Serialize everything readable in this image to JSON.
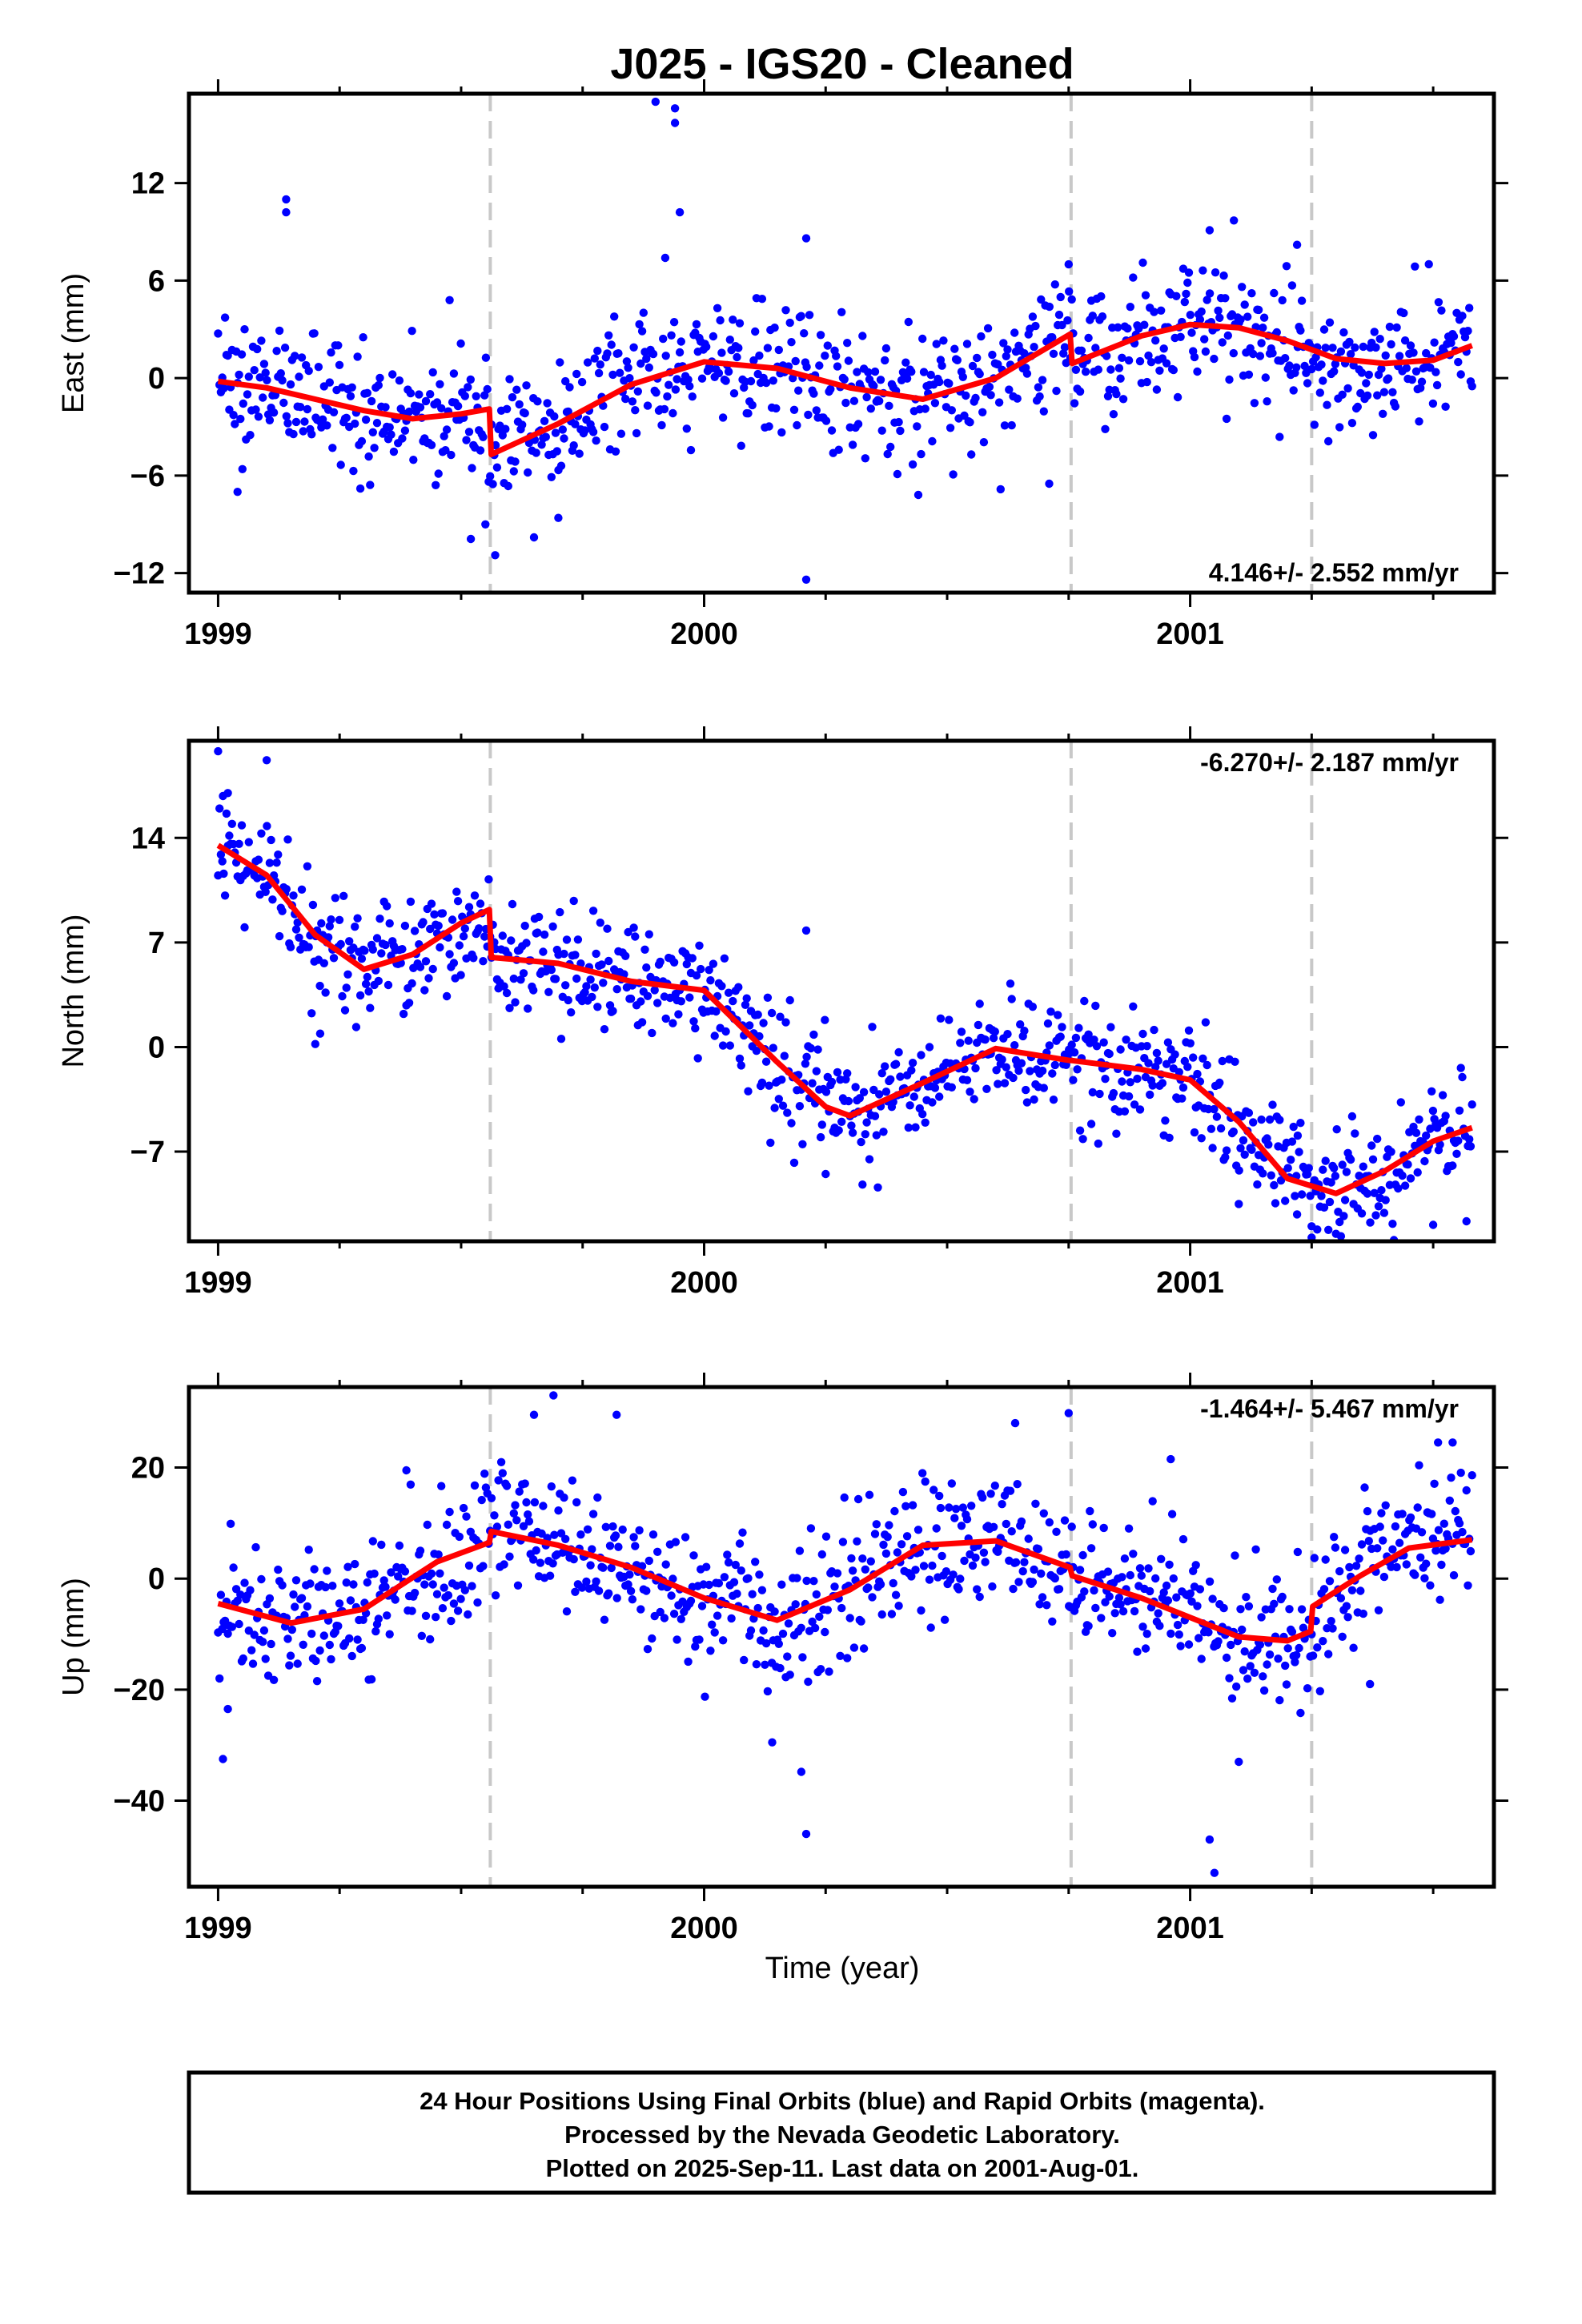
{
  "title": "J025  - IGS20 - Cleaned",
  "xlabel": "Time (year)",
  "footer": {
    "line1": "24 Hour Positions Using Final Orbits (blue) and Rapid Orbits (magenta).",
    "line2": "Processed by the Nevada Geodetic Laboratory.",
    "line3": "Plotted on 2025-Sep-11. Last data on 2001-Aug-01."
  },
  "colors": {
    "points": "#0000ff",
    "model": "#ff0000",
    "event_lines": "#c8c8c8",
    "frame": "#000000"
  },
  "chart_data": [
    {
      "type": "scatter",
      "panel": "east",
      "ylabel": "East (mm)",
      "rate_label": "4.146+/- 2.552 mm/yr",
      "xlim": [
        1998.94,
        2001.625
      ],
      "ylim": [
        -13.2,
        17.5
      ],
      "x_ticks": [
        1999,
        2000,
        2001
      ],
      "x_tick_labels": [
        "1999",
        "2000",
        "2001"
      ],
      "y_ticks": [
        -12,
        -6,
        0,
        6,
        12
      ],
      "y_tick_labels": [
        "−12",
        "−6",
        "0",
        "6",
        "12"
      ],
      "event_lines": [
        1999.56,
        2000.755,
        2001.25
      ],
      "series": [
        {
          "kind": "model",
          "x": [
            1999.0,
            1999.1,
            1999.2,
            1999.3,
            1999.4,
            1999.5,
            1999.558,
            1999.562,
            1999.7,
            1999.85,
            2000.0,
            2000.15,
            2000.3,
            2000.45,
            2000.6,
            2000.753,
            2000.757,
            2000.9,
            2001.0,
            2001.1,
            2001.2,
            2001.3,
            2001.4,
            2001.5,
            2001.58
          ],
          "y": [
            -0.2,
            -0.6,
            -1.3,
            -2.0,
            -2.5,
            -2.2,
            -1.9,
            -4.7,
            -2.8,
            -0.4,
            1.0,
            0.6,
            -0.6,
            -1.3,
            0.0,
            2.7,
            0.9,
            2.6,
            3.3,
            3.1,
            2.3,
            1.2,
            0.9,
            1.1,
            2.0
          ]
        },
        {
          "kind": "outliers",
          "x": [
            1999.14,
            1999.14,
            1999.9,
            1999.94,
            1999.94,
            1999.95,
            2000.21,
            2000.21,
            1999.52,
            1999.55,
            1999.57,
            1999.65,
            1999.7,
            2000.71,
            2000.75,
            2001.04,
            2001.09,
            2001.22,
            1999.04,
            1999.05,
            1999.92
          ],
          "y": [
            10.2,
            11.0,
            17.0,
            15.7,
            16.6,
            10.2,
            8.6,
            -12.4,
            -9.9,
            -9.0,
            -10.9,
            -9.8,
            -8.6,
            -6.5,
            7.0,
            9.1,
            9.7,
            8.2,
            -7.0,
            -5.6,
            7.4
          ]
        }
      ]
    },
    {
      "type": "scatter",
      "panel": "north",
      "ylabel": "North (mm)",
      "rate_label": "-6.270+/- 2.187 mm/yr",
      "xlim": [
        1998.94,
        2001.625
      ],
      "ylim": [
        -13.0,
        20.5
      ],
      "x_ticks": [
        1999,
        2000,
        2001
      ],
      "x_tick_labels": [
        "1999",
        "2000",
        "2001"
      ],
      "y_ticks": [
        -7,
        0,
        7,
        14
      ],
      "y_tick_labels": [
        "−7",
        "0",
        "7",
        "14"
      ],
      "event_lines": [
        1999.56,
        2000.755,
        2001.25
      ],
      "series": [
        {
          "kind": "model",
          "x": [
            1999.0,
            1999.1,
            1999.2,
            1999.3,
            1999.4,
            1999.5,
            1999.558,
            1999.562,
            1999.7,
            1999.85,
            2000.0,
            2000.15,
            2000.25,
            2000.3,
            2000.45,
            2000.6,
            2000.753,
            2000.757,
            2000.9,
            2001.0,
            2001.1,
            2001.2,
            2001.3,
            2001.4,
            2001.5,
            2001.58
          ],
          "y": [
            13.5,
            11.5,
            7.5,
            5.2,
            6.2,
            8.3,
            9.2,
            6.0,
            5.6,
            4.4,
            3.8,
            -1.0,
            -4.0,
            -4.6,
            -2.4,
            -0.1,
            -0.9,
            -0.9,
            -1.5,
            -2.2,
            -5.0,
            -8.8,
            -9.8,
            -8.3,
            -6.3,
            -5.4
          ]
        },
        {
          "kind": "outliers",
          "x": [
            1999.0,
            1999.01,
            1999.02,
            1999.1,
            1999.2,
            1999.21,
            2000.21,
            2000.25,
            2001.1,
            2001.22,
            2001.25,
            2001.3,
            2001.5
          ],
          "y": [
            19.8,
            16.8,
            17.0,
            19.2,
            0.2,
            0.9,
            7.8,
            -8.5,
            -10.5,
            -11.2,
            -12.0,
            -12.5,
            -11.9
          ]
        }
      ]
    },
    {
      "type": "scatter",
      "panel": "up",
      "ylabel": "Up (mm)",
      "rate_label": "-1.464+/- 5.467 mm/yr",
      "xlim": [
        1998.94,
        2001.625
      ],
      "ylim": [
        -55.5,
        34.5
      ],
      "x_ticks": [
        1999,
        2000,
        2001
      ],
      "x_tick_labels": [
        "1999",
        "2000",
        "2001"
      ],
      "y_ticks": [
        -40,
        -20,
        0,
        20
      ],
      "y_tick_labels": [
        "−40",
        "−20",
        "0",
        "20"
      ],
      "event_lines": [
        1999.56,
        2000.755,
        2001.25
      ],
      "series": [
        {
          "kind": "model",
          "x": [
            1999.0,
            1999.15,
            1999.3,
            1999.45,
            1999.558,
            1999.562,
            1999.7,
            1999.85,
            2000.0,
            2000.15,
            2000.3,
            2000.45,
            2000.6,
            2000.753,
            2000.757,
            2000.9,
            2001.0,
            2001.1,
            2001.2,
            2001.248,
            2001.252,
            2001.35,
            2001.45,
            2001.58
          ],
          "y": [
            -4.5,
            -8.0,
            -5.5,
            3.0,
            6.5,
            8.5,
            6.0,
            2.0,
            -3.5,
            -7.5,
            -2.0,
            6.0,
            6.8,
            2.0,
            0.5,
            -3.5,
            -7.0,
            -10.5,
            -11.2,
            -9.5,
            -5.0,
            0.5,
            5.5,
            7.0
          ]
        },
        {
          "kind": "outliers",
          "x": [
            1999.01,
            1999.02,
            1999.65,
            1999.69,
            1999.82,
            2000.14,
            2000.2,
            2000.21,
            2000.64,
            2000.75,
            2000.96,
            2001.04,
            2001.05,
            2001.1,
            2001.37,
            2001.51,
            2001.54
          ],
          "y": [
            -32.5,
            -23.5,
            29.5,
            33.0,
            29.5,
            -29.5,
            -34.8,
            -46.0,
            28.0,
            29.8,
            21.5,
            -47.0,
            -53.0,
            -33.0,
            -19.0,
            24.5,
            24.5
          ]
        }
      ]
    }
  ]
}
